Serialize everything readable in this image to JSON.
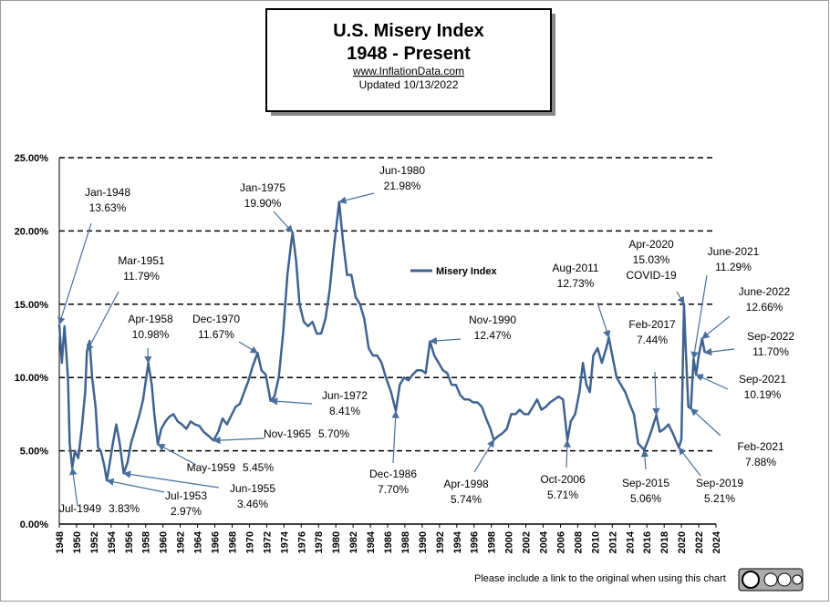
{
  "chart_data": {
    "type": "line",
    "title": "U.S. Misery Index",
    "subtitle": "1948 - Present",
    "source": "www.InflationData.com",
    "updated": "Updated  10/13/2022",
    "footer": "Please include a link to the original when using this chart",
    "grid": true,
    "xlim": [
      1948,
      2024
    ],
    "xticks": [
      1948,
      1950,
      1952,
      1954,
      1956,
      1958,
      1960,
      1962,
      1964,
      1966,
      1968,
      1970,
      1972,
      1974,
      1976,
      1978,
      1980,
      1982,
      1984,
      1986,
      1988,
      1990,
      1992,
      1994,
      1996,
      1998,
      2000,
      2002,
      2004,
      2006,
      2008,
      2010,
      2012,
      2014,
      2016,
      2018,
      2020,
      2022,
      2024
    ],
    "ylim": [
      0,
      25
    ],
    "yticks": [
      {
        "value": 0,
        "label": "0.00%"
      },
      {
        "value": 5,
        "label": "5.00%"
      },
      {
        "value": 10,
        "label": "10.00%"
      },
      {
        "value": 15,
        "label": "15.00%"
      },
      {
        "value": 20,
        "label": "20.00%"
      },
      {
        "value": 25,
        "label": "25.00%"
      }
    ],
    "series": [
      {
        "name": "Misery Index",
        "color": "#3f6391",
        "x": [
          1948.0,
          1948.3,
          1948.6,
          1949.0,
          1949.2,
          1949.5,
          1949.8,
          1950.2,
          1950.6,
          1951.0,
          1951.2,
          1951.5,
          1951.8,
          1952.2,
          1952.5,
          1952.8,
          1953.2,
          1953.5,
          1953.8,
          1954.2,
          1954.6,
          1955.0,
          1955.45,
          1955.9,
          1956.3,
          1956.8,
          1957.3,
          1957.7,
          1958.3,
          1958.7,
          1959.0,
          1959.4,
          1959.8,
          1960.3,
          1960.7,
          1961.2,
          1961.7,
          1962.2,
          1962.7,
          1963.2,
          1963.7,
          1964.2,
          1964.7,
          1965.3,
          1965.85,
          1966.4,
          1966.9,
          1967.4,
          1967.9,
          1968.4,
          1968.9,
          1969.4,
          1969.9,
          1970.4,
          1970.95,
          1971.4,
          1971.9,
          1972.45,
          1972.9,
          1973.4,
          1973.9,
          1974.4,
          1974.8,
          1975.0,
          1975.4,
          1975.8,
          1976.3,
          1976.8,
          1977.3,
          1977.8,
          1978.3,
          1978.8,
          1979.3,
          1979.8,
          1980.4,
          1980.8,
          1981.3,
          1981.8,
          1982.3,
          1982.8,
          1983.3,
          1983.8,
          1984.3,
          1984.8,
          1985.3,
          1985.8,
          1986.4,
          1986.95,
          1987.4,
          1987.9,
          1988.4,
          1988.9,
          1989.4,
          1989.9,
          1990.4,
          1990.9,
          1991.4,
          1991.9,
          1992.4,
          1992.9,
          1993.4,
          1993.9,
          1994.4,
          1994.9,
          1995.4,
          1995.9,
          1996.4,
          1996.9,
          1997.4,
          1997.9,
          1998.3,
          1998.8,
          1999.3,
          1999.8,
          2000.3,
          2000.8,
          2001.3,
          2001.8,
          2002.3,
          2002.8,
          2003.3,
          2003.8,
          2004.3,
          2004.8,
          2005.3,
          2005.8,
          2006.3,
          2006.8,
          2007.2,
          2007.7,
          2008.2,
          2008.6,
          2009.0,
          2009.4,
          2009.8,
          2010.3,
          2010.8,
          2011.3,
          2011.6,
          2012.0,
          2012.5,
          2013.0,
          2013.5,
          2014.0,
          2014.5,
          2015.0,
          2015.7,
          2016.2,
          2016.6,
          2017.1,
          2017.5,
          2018.0,
          2018.5,
          2019.0,
          2019.7,
          2020.0,
          2020.3,
          2020.5,
          2020.8,
          2021.1,
          2021.4,
          2021.7,
          2022.0,
          2022.4,
          2022.7
        ],
        "values": [
          13.63,
          11,
          13.5,
          10,
          5.5,
          3.83,
          5,
          4.5,
          6.5,
          9,
          11.79,
          12.5,
          10,
          8,
          5.2,
          5,
          4,
          2.97,
          4,
          5.5,
          6.8,
          5.5,
          3.46,
          4.2,
          5.5,
          6.5,
          7.5,
          8.5,
          10.98,
          9.5,
          7.5,
          5.45,
          6.5,
          7,
          7.3,
          7.5,
          7,
          6.8,
          6.5,
          7,
          6.8,
          6.7,
          6.3,
          6,
          5.7,
          6.3,
          7.2,
          6.8,
          7.4,
          8,
          8.2,
          9,
          9.8,
          10.8,
          11.67,
          10.5,
          10.2,
          8.41,
          8.7,
          10,
          13,
          17,
          19,
          19.9,
          18,
          15,
          13.8,
          13.5,
          13.8,
          13,
          13,
          14,
          16,
          19,
          21.98,
          19.5,
          17,
          17,
          15.5,
          15,
          14,
          12,
          11.5,
          11.5,
          11,
          10,
          9,
          7.7,
          9.5,
          10,
          9.8,
          10.2,
          10.5,
          10.5,
          10.3,
          12.47,
          11.5,
          11,
          10.5,
          10.3,
          9.5,
          9.5,
          8.8,
          8.5,
          8.5,
          8.3,
          8.3,
          8,
          7.2,
          6.5,
          5.74,
          6,
          6.2,
          6.5,
          7.5,
          7.5,
          7.8,
          7.5,
          7.5,
          8,
          8.5,
          7.8,
          8,
          8.3,
          8.5,
          8.7,
          8.5,
          5.71,
          7,
          7.5,
          9,
          11,
          9.5,
          9,
          11.5,
          12,
          11,
          12,
          12.73,
          11.5,
          10,
          9.5,
          9,
          8.2,
          7.5,
          5.5,
          5.06,
          5.8,
          6.5,
          7.44,
          6.3,
          6.5,
          6.8,
          6.2,
          5.21,
          5.8,
          15.03,
          12,
          8,
          7.88,
          11.29,
          10.19,
          11.5,
          12.66,
          11.7
        ]
      }
    ],
    "annotations": [
      {
        "text": "Jan-1948",
        "value": 13.63,
        "value_label": "13.63%",
        "x": 1948.0
      },
      {
        "text": "Jul-1949",
        "value": 3.83,
        "value_label": "3.83%",
        "x": 1949.5
      },
      {
        "text": "Mar-1951",
        "value": 11.79,
        "value_label": "11.79%",
        "x": 1951.2
      },
      {
        "text": "Jul-1953",
        "value": 2.97,
        "value_label": "2.97%",
        "x": 1953.5
      },
      {
        "text": "Jun-1955",
        "value": 3.46,
        "value_label": "3.46%",
        "x": 1955.45
      },
      {
        "text": "Apr-1958",
        "value": 10.98,
        "value_label": "10.98%",
        "x": 1958.3
      },
      {
        "text": "May-1959",
        "value": 5.45,
        "value_label": "5.45%",
        "x": 1959.4
      },
      {
        "text": "Nov-1965",
        "value": 5.7,
        "value_label": "5.70%",
        "x": 1965.85
      },
      {
        "text": "Dec-1970",
        "value": 11.67,
        "value_label": "11.67%",
        "x": 1970.95
      },
      {
        "text": "Jun-1972",
        "value": 8.41,
        "value_label": "8.41%",
        "x": 1972.45
      },
      {
        "text": "Jan-1975",
        "value": 19.9,
        "value_label": "19.90%",
        "x": 1975.0
      },
      {
        "text": "Jun-1980",
        "value": 21.98,
        "value_label": "21.98%",
        "x": 1980.4
      },
      {
        "text": "Dec-1986",
        "value": 7.7,
        "value_label": "7.70%",
        "x": 1986.95
      },
      {
        "text": "Nov-1990",
        "value": 12.47,
        "value_label": "12.47%",
        "x": 1990.9
      },
      {
        "text": "Apr-1998",
        "value": 5.74,
        "value_label": "5.74%",
        "x": 1998.3
      },
      {
        "text": "Oct-2006",
        "value": 5.71,
        "value_label": "5.71%",
        "x": 2006.8
      },
      {
        "text": "Aug-2011",
        "value": 12.73,
        "value_label": "12.73%",
        "x": 2011.6
      },
      {
        "text": "Sep-2015",
        "value": 5.06,
        "value_label": "5.06%",
        "x": 2015.7
      },
      {
        "text": "Feb-2017",
        "value": 7.44,
        "value_label": "7.44%",
        "x": 2017.1
      },
      {
        "text": "Sep-2019",
        "value": 5.21,
        "value_label": "5.21%",
        "x": 2019.7
      },
      {
        "text": "Apr-2020",
        "value": 15.03,
        "value_label": "15.03%",
        "x": 2020.3,
        "note": "COVID-19"
      },
      {
        "text": "Feb-2021",
        "value": 7.88,
        "value_label": "7.88%",
        "x": 2021.1
      },
      {
        "text": "June-2021",
        "value": 11.29,
        "value_label": "11.29%",
        "x": 2021.4
      },
      {
        "text": "Sep-2021",
        "value": 10.19,
        "value_label": "10.19%",
        "x": 2021.7
      },
      {
        "text": "June-2022",
        "value": 12.66,
        "value_label": "12.66%",
        "x": 2022.4
      },
      {
        "text": "Sep-2022",
        "value": 11.7,
        "value_label": "11.70%",
        "x": 2022.7
      }
    ]
  }
}
